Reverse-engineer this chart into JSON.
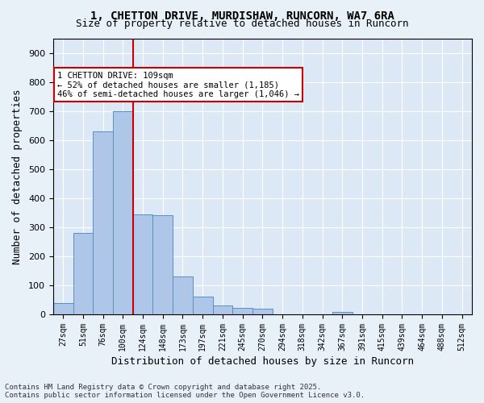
{
  "title_line1": "1, CHETTON DRIVE, MURDISHAW, RUNCORN, WA7 6RA",
  "title_line2": "Size of property relative to detached houses in Runcorn",
  "xlabel": "Distribution of detached houses by size in Runcorn",
  "ylabel": "Number of detached properties",
  "bar_categories": [
    "27sqm",
    "51sqm",
    "76sqm",
    "100sqm",
    "124sqm",
    "148sqm",
    "173sqm",
    "197sqm",
    "221sqm",
    "245sqm",
    "270sqm",
    "294sqm",
    "318sqm",
    "342sqm",
    "367sqm",
    "391sqm",
    "415sqm",
    "439sqm",
    "464sqm",
    "488sqm",
    "512sqm"
  ],
  "bar_values": [
    40,
    280,
    630,
    700,
    345,
    340,
    130,
    60,
    30,
    22,
    20,
    0,
    0,
    0,
    8,
    0,
    0,
    0,
    0,
    0,
    0
  ],
  "bar_color": "#aec6e8",
  "bar_edge_color": "#5a8fc0",
  "vline_x_index": 3.5,
  "vline_color": "#cc0000",
  "annotation_text": "1 CHETTON DRIVE: 109sqm\n← 52% of detached houses are smaller (1,185)\n46% of semi-detached houses are larger (1,046) →",
  "annotation_box_color": "#ffffff",
  "annotation_box_edge": "#cc0000",
  "ylim": [
    0,
    950
  ],
  "yticks": [
    0,
    100,
    200,
    300,
    400,
    500,
    600,
    700,
    800,
    900
  ],
  "footer_line1": "Contains HM Land Registry data © Crown copyright and database right 2025.",
  "footer_line2": "Contains public sector information licensed under the Open Government Licence v3.0.",
  "bg_color": "#e8f0f8",
  "plot_bg_color": "#dce8f5"
}
